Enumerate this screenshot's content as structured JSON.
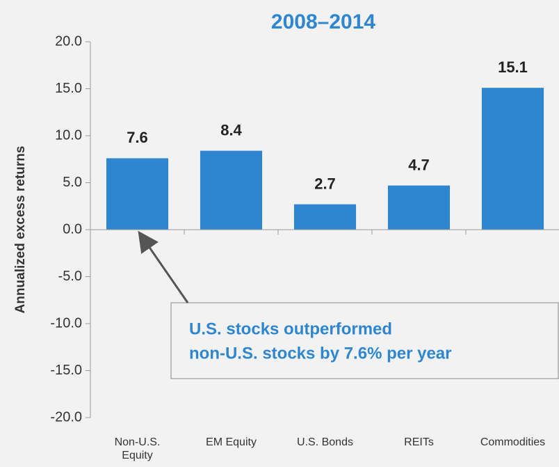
{
  "chart_data": {
    "type": "bar",
    "title": "2008–2014",
    "y_label": "Annualized excess returns",
    "categories": [
      "Non-U.S. Equity",
      "EM Equity",
      "U.S. Bonds",
      "REITs",
      "Commodities"
    ],
    "values": [
      7.6,
      8.4,
      2.7,
      4.7,
      15.1
    ],
    "color": "#2e86d0",
    "ylim": [
      -20,
      20
    ],
    "yticks": [
      {
        "value": -20,
        "label": "-20.0"
      },
      {
        "value": -15,
        "label": "-15.0"
      },
      {
        "value": -10,
        "label": "-10.0"
      },
      {
        "value": -5,
        "label": "-5.0"
      },
      {
        "value": 0,
        "label": "0.0"
      },
      {
        "value": 5,
        "label": "5.0"
      },
      {
        "value": 10,
        "label": "10.0"
      },
      {
        "value": 15,
        "label": "15.0"
      },
      {
        "value": 20,
        "label": "20.0"
      }
    ],
    "annotation": [
      "U.S. stocks outperformed",
      "non-U.S. stocks by 7.6% per year"
    ]
  }
}
